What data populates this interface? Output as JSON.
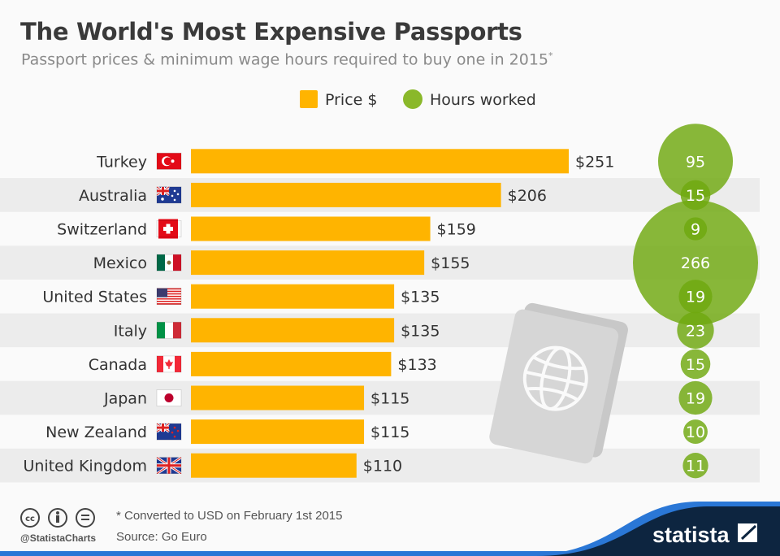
{
  "title": "The World's Most Expensive Passports",
  "subtitle": "Passport prices & minimum wage hours required to buy one in 2015",
  "subtitle_mark": "*",
  "chart_data": {
    "type": "bar",
    "title": "The World's Most Expensive Passports",
    "subtitle": "Passport prices & minimum wage hours required to buy one in 2015*",
    "categories": [
      "Turkey",
      "Australia",
      "Switzerland",
      "Mexico",
      "United States",
      "Italy",
      "Canada",
      "Japan",
      "New Zealand",
      "United Kingdom"
    ],
    "flags": [
      "turkey-flag-icon",
      "australia-flag-icon",
      "switzerland-flag-icon",
      "mexico-flag-icon",
      "usa-flag-icon",
      "italy-flag-icon",
      "canada-flag-icon",
      "japan-flag-icon",
      "new-zealand-flag-icon",
      "uk-flag-icon"
    ],
    "series": [
      {
        "name": "Price $",
        "type": "bar",
        "color": "#ffb400",
        "values": [
          251,
          206,
          159,
          155,
          135,
          135,
          133,
          115,
          115,
          110
        ],
        "labels": [
          "$251",
          "$206",
          "$159",
          "$155",
          "$135",
          "$135",
          "$133",
          "$115",
          "$115",
          "$110"
        ]
      },
      {
        "name": "Hours worked",
        "type": "bubble",
        "color": "#7cb518",
        "values": [
          95,
          15,
          9,
          266,
          19,
          23,
          15,
          19,
          10,
          11
        ],
        "labels": [
          "95",
          "15",
          "9",
          "266",
          "19",
          "23",
          "15",
          "19",
          "10",
          "11"
        ]
      }
    ],
    "legend_position": "top-center",
    "grid": false
  },
  "footer": {
    "note": "* Converted to USD on February 1st 2015",
    "source": "Source: Go Euro",
    "handle": "@StatistaCharts",
    "brand": "statista",
    "license_icons": [
      "cc-icon",
      "attribution-icon",
      "no-derivatives-icon"
    ]
  }
}
